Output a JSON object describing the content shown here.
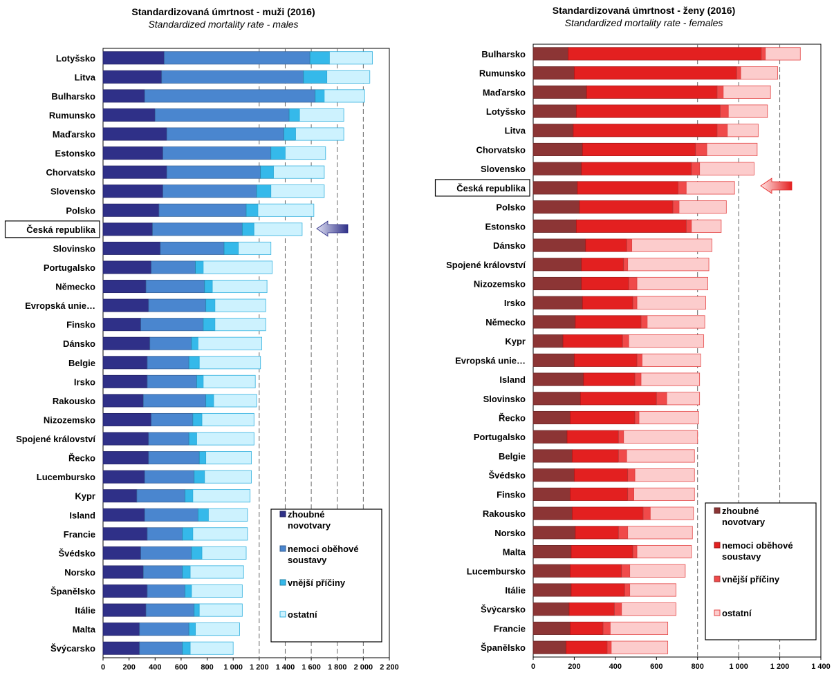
{
  "chart_data": [
    {
      "type": "bar",
      "stacked": true,
      "orientation": "horizontal",
      "title": "Standardizovaná úmrtnost - muži (2016)",
      "subtitle": "Standardized mortality rate - males",
      "xlim": [
        0,
        2200
      ],
      "xticks": [
        0,
        200,
        400,
        600,
        800,
        1000,
        1200,
        1400,
        1600,
        1800,
        2000,
        2200
      ],
      "xtick_labels": [
        "0",
        "200",
        "400",
        "600",
        "800",
        "1 000",
        "1 200",
        "1 400",
        "1 600",
        "1 800",
        "2 000",
        "2 200"
      ],
      "gridlines": [
        1200,
        1400,
        1600,
        1800,
        2000
      ],
      "highlight": "Česká republika",
      "legend_position": "bottom-right",
      "categories": [
        "Lotyšsko",
        "Litva",
        "Bulharsko",
        "Rumunsko",
        "Maďarsko",
        "Estonsko",
        "Chorvatsko",
        "Slovensko",
        "Polsko",
        "Česká republika",
        "Slovinsko",
        "Portugalsko",
        "Německo",
        "Evropská unie…",
        "Finsko",
        "Dánsko",
        "Belgie",
        "Irsko",
        "Rakousko",
        "Nizozemsko",
        "Spojené království",
        "Řecko",
        "Lucembursko",
        "Kypr",
        "Island",
        "Francie",
        "Švédsko",
        "Norsko",
        "Španělsko",
        "Itálie",
        "Malta",
        "Švýcarsko"
      ],
      "series": [
        {
          "name": "zhoubné novotvary",
          "color": "#2f3088",
          "values": [
            470,
            450,
            320,
            400,
            490,
            460,
            490,
            460,
            430,
            380,
            440,
            370,
            330,
            350,
            290,
            360,
            340,
            340,
            310,
            370,
            350,
            350,
            320,
            260,
            320,
            340,
            290,
            310,
            340,
            330,
            280,
            280
          ]
        },
        {
          "name": "nemoci oběhové soustavy",
          "color": "#4a86cf",
          "values": [
            1120,
            1090,
            1310,
            1030,
            900,
            830,
            720,
            720,
            670,
            690,
            490,
            340,
            450,
            440,
            480,
            320,
            320,
            380,
            480,
            320,
            310,
            390,
            380,
            370,
            410,
            270,
            390,
            300,
            290,
            370,
            380,
            330
          ]
        },
        {
          "name": "vnější příčiny",
          "color": "#35b9ea",
          "values": [
            150,
            180,
            70,
            80,
            90,
            110,
            100,
            110,
            90,
            90,
            110,
            60,
            60,
            70,
            90,
            50,
            80,
            50,
            60,
            70,
            60,
            50,
            80,
            60,
            80,
            80,
            80,
            60,
            50,
            40,
            50,
            60
          ]
        },
        {
          "name": "ostatní",
          "color": "#cdf2fe",
          "values": [
            330,
            330,
            310,
            340,
            370,
            310,
            390,
            410,
            430,
            370,
            250,
            530,
            420,
            390,
            390,
            490,
            470,
            400,
            330,
            400,
            440,
            350,
            360,
            440,
            300,
            420,
            340,
            410,
            390,
            330,
            340,
            330
          ]
        }
      ]
    },
    {
      "type": "bar",
      "stacked": true,
      "orientation": "horizontal",
      "title": "Standardizovaná úmrtnost - ženy (2016)",
      "subtitle": "Standardized mortality rate - females",
      "xlim": [
        0,
        1400
      ],
      "xticks": [
        0,
        200,
        400,
        600,
        800,
        1000,
        1200,
        1400
      ],
      "xtick_labels": [
        "0",
        "200",
        "400",
        "600",
        "800",
        "1 000",
        "1 200",
        "1 400"
      ],
      "gridlines": [
        800,
        1000,
        1200
      ],
      "highlight": "Česká republika",
      "legend_position": "bottom-right",
      "categories": [
        "Bulharsko",
        "Rumunsko",
        "Maďarsko",
        "Lotyšsko",
        "Litva",
        "Chorvatsko",
        "Slovensko",
        "Česká republika",
        "Polsko",
        "Estonsko",
        "Dánsko",
        "Spojené království",
        "Nizozemsko",
        "Irsko",
        "Německo",
        "Kypr",
        "Evropská unie…",
        "Island",
        "Slovinsko",
        "Řecko",
        "Portugalsko",
        "Belgie",
        "Švédsko",
        "Finsko",
        "Rakousko",
        "Norsko",
        "Malta",
        "Lucembursko",
        "Itálie",
        "Švýcarsko",
        "Francie",
        "Španělsko"
      ],
      "series": [
        {
          "name": "zhoubné novotvary",
          "color": "#8c3535",
          "values": [
            170,
            200,
            260,
            210,
            195,
            240,
            235,
            215,
            225,
            210,
            255,
            235,
            235,
            240,
            205,
            145,
            200,
            245,
            230,
            180,
            165,
            190,
            200,
            180,
            190,
            205,
            185,
            180,
            185,
            175,
            180,
            160
          ]
        },
        {
          "name": "nemoci oběhové soustavy",
          "color": "#e32020",
          "values": [
            940,
            790,
            635,
            700,
            700,
            550,
            535,
            490,
            455,
            535,
            200,
            205,
            230,
            245,
            320,
            290,
            305,
            250,
            370,
            315,
            250,
            225,
            260,
            280,
            345,
            210,
            300,
            250,
            260,
            220,
            160,
            200
          ]
        },
        {
          "name": "vnější příčiny",
          "color": "#f04a4a",
          "values": [
            20,
            20,
            30,
            40,
            50,
            55,
            40,
            40,
            30,
            25,
            25,
            20,
            40,
            20,
            30,
            30,
            25,
            30,
            50,
            20,
            25,
            40,
            35,
            30,
            35,
            45,
            20,
            40,
            25,
            35,
            35,
            20
          ]
        },
        {
          "name": "ostatní",
          "color": "#fccccc",
          "values": [
            170,
            180,
            230,
            190,
            150,
            245,
            265,
            235,
            230,
            145,
            390,
            395,
            345,
            335,
            280,
            365,
            285,
            285,
            160,
            290,
            360,
            330,
            290,
            295,
            210,
            315,
            265,
            270,
            225,
            265,
            280,
            275
          ]
        }
      ]
    }
  ]
}
